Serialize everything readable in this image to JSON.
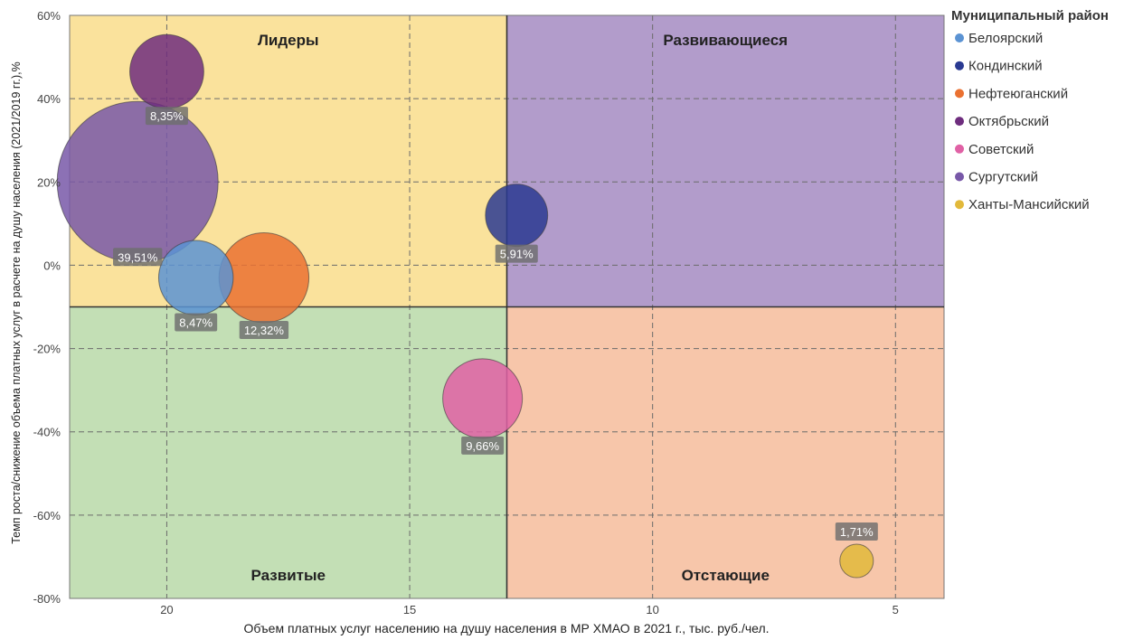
{
  "chart_data": {
    "type": "scatter",
    "xlabel": "Объем платных услуг населению на душу населения в МР ХМАО в 2021 г., тыс. руб./чел.",
    "ylabel": "Темп роста/снижение объема платных услуг в расчете на душу населения (2021/2019 гг.),%",
    "xlim": [
      22,
      4
    ],
    "ylim": [
      -80,
      60
    ],
    "x_reversed": true,
    "x_ticks": [
      20,
      15,
      10,
      5
    ],
    "x_tick_labels": [
      "20",
      "15",
      "10",
      "5"
    ],
    "y_ticks": [
      60,
      40,
      20,
      0,
      -20,
      -40,
      -60,
      -80
    ],
    "y_tick_labels": [
      "60%",
      "40%",
      "20%",
      "0%",
      "-20%",
      "-40%",
      "-60%",
      "-80%"
    ],
    "grid": true,
    "legend_position": "right",
    "legend_title": "Муниципальный район",
    "quadrant_divider": {
      "x": 13,
      "y": -10
    },
    "quadrants": [
      {
        "label": "Лидеры",
        "color": "#fae29c"
      },
      {
        "label": "Развивающиеся",
        "color": "#b29ccb"
      },
      {
        "label": "Развитые",
        "color": "#c3dfb5"
      },
      {
        "label": "Отстающие",
        "color": "#f7c6aa"
      }
    ],
    "series": [
      {
        "name": "Белоярский",
        "x": 19.4,
        "y": -3,
        "size": 8.47,
        "label": "8,47%",
        "color": "#5b93d3"
      },
      {
        "name": "Кондинский",
        "x": 12.8,
        "y": 12,
        "size": 5.91,
        "label": "5,91%",
        "color": "#2a3a92"
      },
      {
        "name": "Нефтеюганский",
        "x": 18.0,
        "y": -3,
        "size": 12.32,
        "label": "12,32%",
        "color": "#ea7131"
      },
      {
        "name": "Октябрьский",
        "x": 20.0,
        "y": 46.5,
        "size": 8.35,
        "label": "8,35%",
        "color": "#6e2d7e"
      },
      {
        "name": "Советский",
        "x": 13.5,
        "y": -32,
        "size": 9.66,
        "label": "9,66%",
        "color": "#e061a5"
      },
      {
        "name": "Сургутский",
        "x": 20.6,
        "y": 20,
        "size": 39.51,
        "label": "39,51%",
        "color": "#7858a8"
      },
      {
        "name": "Ханты-Мансийский",
        "x": 5.8,
        "y": -71,
        "size": 1.71,
        "label": "1,71%",
        "color": "#e2b93b"
      }
    ]
  }
}
